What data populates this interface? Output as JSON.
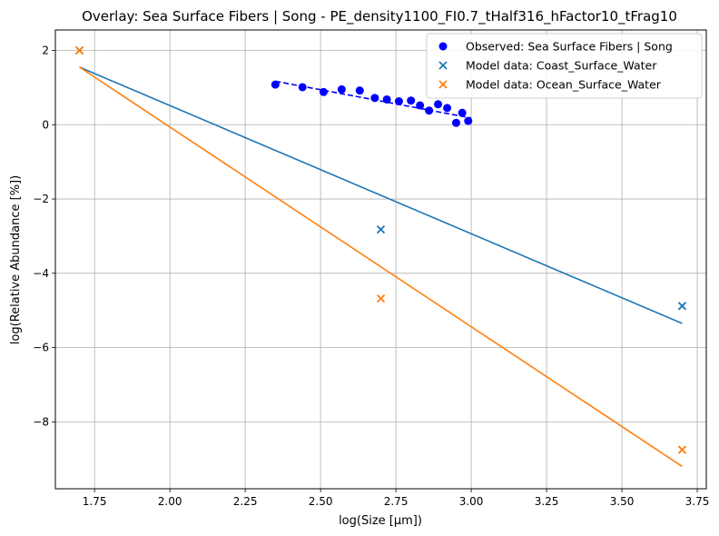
{
  "chart_data": {
    "type": "scatter",
    "title": "Overlay: Sea Surface Fibers | Song - PE_density1100_FI0.7_tHalf316_hFactor10_tFrag10",
    "xlabel": "log(Size [μm])",
    "ylabel": "log(Relative Abundance [%])",
    "xlim": [
      1.62,
      3.78
    ],
    "ylim": [
      -9.8,
      2.55
    ],
    "xticks": [
      1.75,
      2.0,
      2.25,
      2.5,
      2.75,
      3.0,
      3.25,
      3.5,
      3.75
    ],
    "xtick_labels": [
      "1.75",
      "2.00",
      "2.25",
      "2.50",
      "2.75",
      "3.00",
      "3.25",
      "3.50",
      "3.75"
    ],
    "yticks": [
      -8,
      -6,
      -4,
      -2,
      0,
      2
    ],
    "ytick_labels": [
      "−8",
      "−6",
      "−4",
      "−2",
      "0",
      "2"
    ],
    "grid": true,
    "legend_position": "top-right",
    "series": [
      {
        "name": "Observed: Sea Surface Fibers | Song",
        "color": "#0000ff",
        "marker": "circle",
        "x": [
          2.35,
          2.44,
          2.51,
          2.57,
          2.63,
          2.68,
          2.72,
          2.76,
          2.8,
          2.83,
          2.86,
          2.89,
          2.92,
          2.95,
          2.97,
          2.99
        ],
        "y": [
          1.08,
          1.01,
          0.88,
          0.95,
          0.92,
          0.72,
          0.68,
          0.63,
          0.65,
          0.52,
          0.38,
          0.55,
          0.45,
          0.05,
          0.32,
          0.1
        ],
        "fit": {
          "x": [
            2.35,
            3.0
          ],
          "y": [
            1.17,
            0.18
          ],
          "style": "dashed"
        }
      },
      {
        "name": "Model data: Coast_Surface_Water",
        "color": "#1f77b4",
        "marker": "x",
        "x": [
          1.7,
          2.7,
          3.7
        ],
        "y": [
          2.0,
          -2.82,
          -4.88
        ],
        "fit": {
          "x": [
            1.7,
            3.7
          ],
          "y": [
            1.55,
            -5.35
          ],
          "style": "solid"
        }
      },
      {
        "name": "Model data: Ocean_Surface_Water",
        "color": "#ff7f0e",
        "marker": "x",
        "x": [
          1.7,
          2.7,
          3.7
        ],
        "y": [
          2.0,
          -4.68,
          -8.75
        ],
        "fit": {
          "x": [
            1.7,
            3.7
          ],
          "y": [
            1.55,
            -9.2
          ],
          "style": "solid"
        }
      }
    ]
  }
}
